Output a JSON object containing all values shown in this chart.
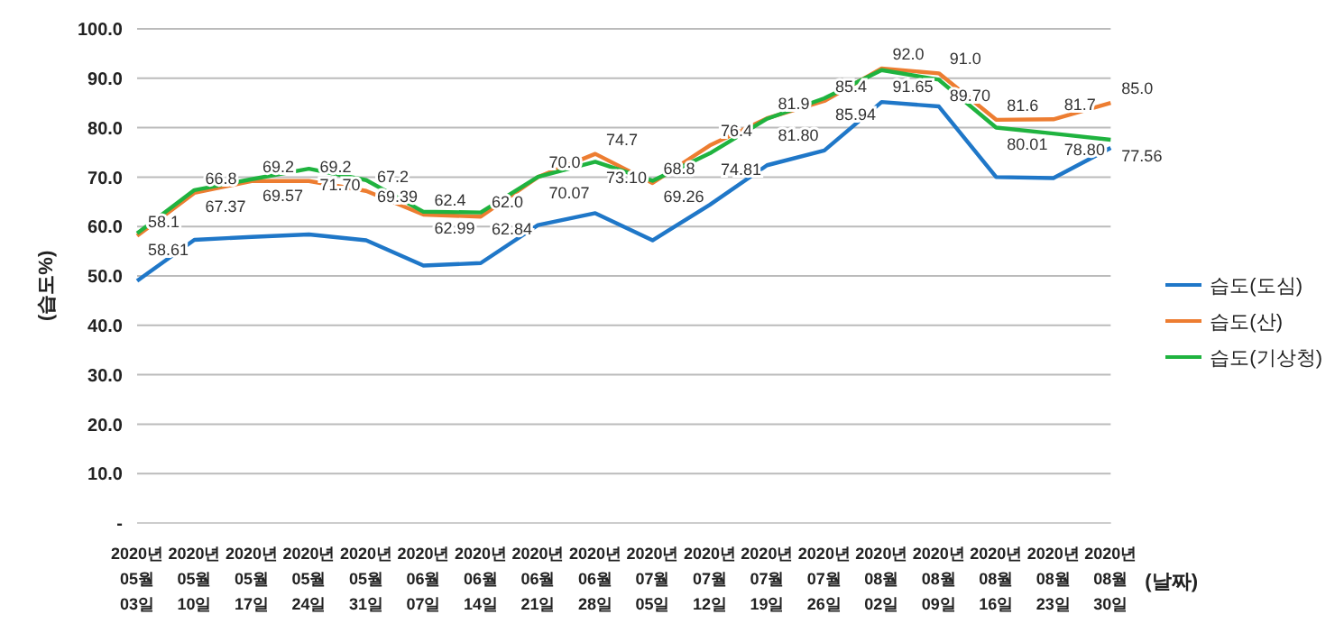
{
  "chart_data": {
    "type": "line",
    "ylabel": "(습도%)",
    "xlabel": "(날짜)",
    "categories": [
      "2020년\n05월\n03일",
      "2020년\n05월\n10일",
      "2020년\n05월\n17일",
      "2020년\n05월\n24일",
      "2020년\n05월\n31일",
      "2020년\n06월\n07일",
      "2020년\n06월\n14일",
      "2020년\n06월\n21일",
      "2020년\n06월\n28일",
      "2020년\n07월\n05일",
      "2020년\n07월\n12일",
      "2020년\n07월\n19일",
      "2020년\n07월\n26일",
      "2020년\n08월\n02일",
      "2020년\n08월\n09일",
      "2020년\n08월\n16일",
      "2020년\n08월\n23일",
      "2020년\n08월\n30일"
    ],
    "series": [
      {
        "name": "습도(도심)",
        "color": "#1f77c8",
        "values": [
          49.0,
          57.3,
          57.9,
          58.4,
          57.2,
          52.1,
          52.6,
          60.3,
          62.7,
          57.2,
          64.4,
          72.4,
          75.4,
          85.2,
          84.3,
          70.0,
          69.8,
          75.9
        ]
      },
      {
        "name": "습도(산)",
        "color": "#ed7d31",
        "values": [
          58.1,
          66.8,
          69.2,
          69.2,
          67.2,
          62.4,
          62.0,
          70.0,
          74.7,
          68.8,
          76.4,
          81.9,
          85.4,
          92.0,
          91.0,
          81.6,
          81.7,
          85.0
        ],
        "value_labels": [
          "58.1",
          "66.8",
          "69.2",
          "69.2",
          "67.2",
          "62.4",
          "62.0",
          "70.0",
          "74.7",
          "68.8",
          "76.4",
          "81.9",
          "85.4",
          "92.0",
          "91.0",
          "81.6",
          "81.7",
          "85.0"
        ]
      },
      {
        "name": "습도(기상청)",
        "color": "#1fb33f",
        "values": [
          58.61,
          67.37,
          69.57,
          71.7,
          69.39,
          62.99,
          62.84,
          70.07,
          73.1,
          69.26,
          74.81,
          81.8,
          85.94,
          91.65,
          89.7,
          80.01,
          78.8,
          77.56
        ],
        "value_labels": [
          "58.61",
          "67.37",
          "69.57",
          "71.70",
          "69.39",
          "62.99",
          "62.84",
          "70.07",
          "73.10",
          "69.26",
          "74.81",
          "81.80",
          "85.94",
          "91.65",
          "89.70",
          "80.01",
          "78.80",
          "77.56"
        ]
      }
    ],
    "ylim": [
      0,
      100
    ],
    "yticks": [
      {
        "value": 0,
        "label": "-"
      },
      {
        "value": 10,
        "label": "10.0"
      },
      {
        "value": 20,
        "label": "20.0"
      },
      {
        "value": 30,
        "label": "30.0"
      },
      {
        "value": 40,
        "label": "40.0"
      },
      {
        "value": 50,
        "label": "50.0"
      },
      {
        "value": 60,
        "label": "60.0"
      },
      {
        "value": 70,
        "label": "70.0"
      },
      {
        "value": 80,
        "label": "80.0"
      },
      {
        "value": 90,
        "label": "90.0"
      },
      {
        "value": 100,
        "label": "100.0"
      }
    ],
    "grid": "y",
    "legend": "right",
    "marker": "none",
    "line_style": "solid"
  }
}
